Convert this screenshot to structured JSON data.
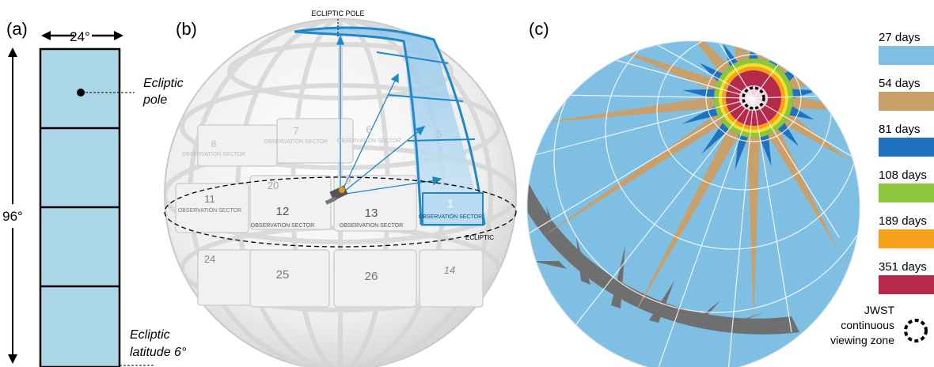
{
  "panel_a": {
    "label": "(a)",
    "width_label": "24°",
    "height_label": "96°",
    "pole_label_line1": "Ecliptic",
    "pole_label_line2": "pole",
    "lat_label_line1": "Ecliptic",
    "lat_label_line2": "latitude 6°",
    "fill_color": "#abd6e5"
  },
  "panel_b": {
    "label": "(b)",
    "pole_label": "ECLIPTIC POLE",
    "ecliptic_label": "ECLIPTIC",
    "sector_word": "OBSERVATION SECTOR",
    "sectors": [
      {
        "num": "1"
      },
      {
        "num": "5"
      },
      {
        "num": "6"
      },
      {
        "num": "7"
      },
      {
        "num": "8"
      },
      {
        "num": "9"
      },
      {
        "num": "11"
      },
      {
        "num": "12"
      },
      {
        "num": "13"
      },
      {
        "num": "14"
      },
      {
        "num": "20"
      },
      {
        "num": "24"
      },
      {
        "num": "25"
      },
      {
        "num": "26"
      }
    ]
  },
  "panel_c": {
    "label": "(c)",
    "legend": [
      {
        "label": "27 days",
        "color": "#7fbfe3"
      },
      {
        "label": "54 days",
        "color": "#c9a06a"
      },
      {
        "label": "81 days",
        "color": "#1f72c0"
      },
      {
        "label": "108 days",
        "color": "#8cc63f"
      },
      {
        "label": "189 days",
        "color": "#f7a01c"
      },
      {
        "label": "351 days",
        "color": "#b5294a"
      }
    ],
    "jwst_line1": "JWST",
    "jwst_line2": "continuous",
    "jwst_line3": "viewing zone"
  }
}
